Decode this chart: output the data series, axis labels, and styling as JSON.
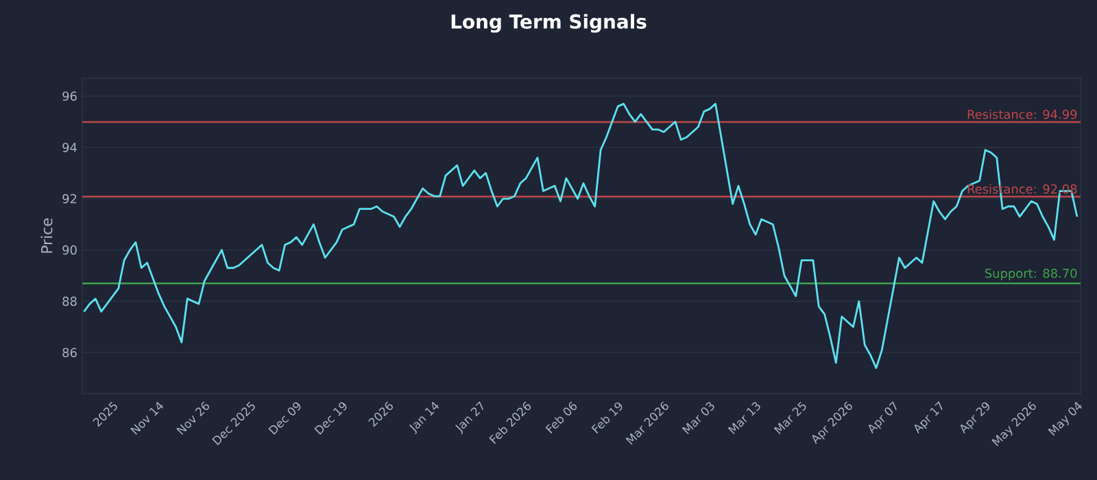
{
  "chart_data": {
    "type": "line",
    "title": "Long Term Signals",
    "ylabel": "Price",
    "categories": [
      null,
      null,
      null,
      null,
      null,
      "2025",
      null,
      null,
      null,
      null,
      null,
      null,
      null,
      "Nov 14",
      null,
      null,
      null,
      null,
      null,
      null,
      null,
      "Nov 26",
      null,
      null,
      null,
      null,
      null,
      null,
      null,
      "Dec 2025",
      null,
      null,
      null,
      null,
      null,
      null,
      null,
      "Dec 09",
      null,
      null,
      null,
      null,
      null,
      null,
      null,
      "Dec 19",
      null,
      null,
      null,
      null,
      null,
      null,
      null,
      "2026",
      null,
      null,
      null,
      null,
      null,
      null,
      null,
      "Jan 14",
      null,
      null,
      null,
      null,
      null,
      null,
      null,
      "Jan 27",
      null,
      null,
      null,
      null,
      null,
      null,
      null,
      "Feb 2026",
      null,
      null,
      null,
      null,
      null,
      null,
      null,
      "Feb 06",
      null,
      null,
      null,
      null,
      null,
      null,
      null,
      "Feb 19",
      null,
      null,
      null,
      null,
      null,
      null,
      null,
      "Mar 2026",
      null,
      null,
      null,
      null,
      null,
      null,
      null,
      "Mar 03",
      null,
      null,
      null,
      null,
      null,
      null,
      null,
      "Mar 13",
      null,
      null,
      null,
      null,
      null,
      null,
      null,
      "Mar 25",
      null,
      null,
      null,
      null,
      null,
      null,
      null,
      "Apr 2026",
      null,
      null,
      null,
      null,
      null,
      null,
      null,
      "Apr 07",
      null,
      null,
      null,
      null,
      null,
      null,
      null,
      "Apr 17",
      null,
      null,
      null,
      null,
      null,
      null,
      null,
      "Apr 29",
      null,
      null,
      null,
      null,
      null,
      null,
      null,
      "May 2026",
      null,
      null,
      null,
      null,
      null,
      null,
      null,
      "May 04"
    ],
    "series": [
      {
        "color": "#5ce1f0",
        "line_style": "solid",
        "values": [
          87.6,
          87.9,
          88.1,
          87.6,
          87.9,
          88.2,
          88.5,
          89.6,
          90.0,
          90.3,
          89.3,
          89.5,
          88.9,
          88.3,
          87.8,
          87.4,
          87.0,
          86.4,
          88.1,
          88.0,
          87.9,
          88.8,
          89.2,
          89.6,
          90.0,
          89.3,
          89.3,
          89.4,
          89.6,
          89.8,
          90.0,
          90.2,
          89.5,
          89.3,
          89.2,
          90.2,
          90.3,
          90.5,
          90.2,
          90.6,
          91.0,
          90.3,
          89.7,
          90.0,
          90.3,
          90.8,
          90.9,
          91.0,
          91.6,
          91.6,
          91.6,
          91.7,
          91.5,
          91.4,
          91.3,
          90.9,
          91.3,
          91.6,
          92.0,
          92.4,
          92.2,
          92.1,
          92.1,
          92.9,
          93.1,
          93.3,
          92.5,
          92.8,
          93.1,
          92.8,
          93.0,
          92.3,
          91.7,
          92.0,
          92.0,
          92.1,
          92.6,
          92.8,
          93.2,
          93.6,
          92.3,
          92.4,
          92.5,
          91.9,
          92.8,
          92.4,
          92.0,
          92.6,
          92.1,
          91.7,
          93.9,
          94.4,
          95.0,
          95.6,
          95.7,
          95.3,
          95.0,
          95.3,
          95.0,
          94.7,
          94.7,
          94.6,
          94.8,
          95.0,
          94.3,
          94.4,
          94.6,
          94.8,
          95.4,
          95.5,
          95.7,
          94.4,
          93.1,
          91.8,
          92.5,
          91.8,
          91.0,
          90.6,
          91.2,
          91.1,
          91.0,
          90.1,
          89.0,
          88.6,
          88.2,
          89.6,
          89.6,
          89.6,
          87.8,
          87.5,
          86.6,
          85.6,
          87.4,
          87.2,
          87.0,
          88.0,
          86.3,
          85.9,
          85.4,
          86.1,
          87.3,
          88.5,
          89.7,
          89.3,
          89.5,
          89.7,
          89.5,
          90.7,
          91.9,
          91.5,
          91.2,
          91.5,
          91.7,
          92.3,
          92.5,
          92.6,
          92.7,
          93.9,
          93.8,
          93.6,
          91.6,
          91.7,
          91.7,
          91.3,
          91.6,
          91.9,
          91.8,
          91.3,
          90.9,
          90.4,
          92.3,
          92.3,
          92.3,
          91.3
        ]
      }
    ],
    "ylim": [
      84.4,
      96.7
    ],
    "yticks": [
      86,
      88,
      90,
      92,
      94,
      96
    ],
    "grid": "y",
    "ref_lines": [
      {
        "axis": "y",
        "value": 94.99,
        "label": "Resistance: 94.99",
        "color": "#c0474a"
      },
      {
        "axis": "y",
        "value": 92.08,
        "label": "Resistance: 92.08",
        "color": "#c0474a"
      },
      {
        "axis": "y",
        "value": 88.7,
        "label": "Support: 88.70",
        "color": "#3fa34d"
      }
    ]
  }
}
